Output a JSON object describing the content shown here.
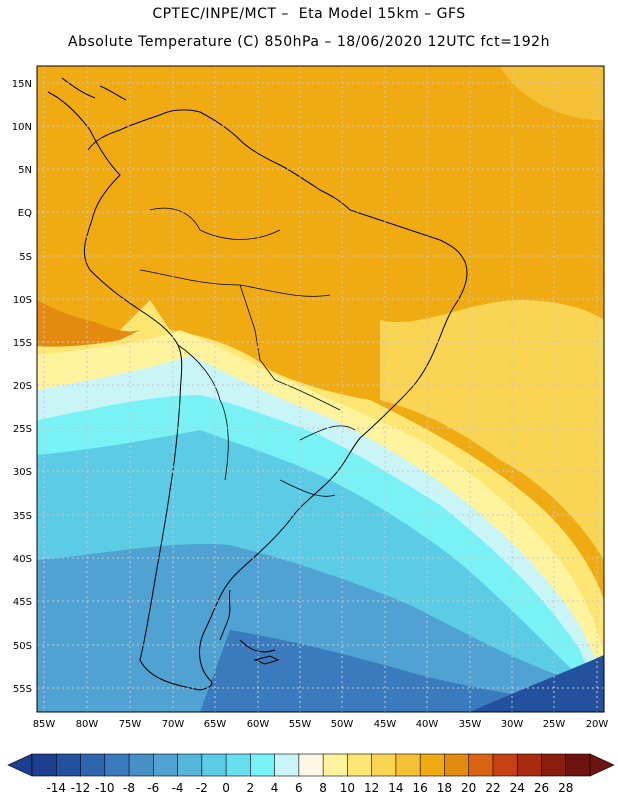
{
  "header": {
    "line1": "CPTEC/INPE/MCT –  Eta Model 15km – GFS",
    "line2": "Absolute Temperature (C) 850hPa – 18/06/2020 12UTC fct=192h"
  },
  "map": {
    "region": "South America",
    "lat_labels": [
      "15N",
      "10N",
      "5N",
      "EQ",
      "5S",
      "10S",
      "15S",
      "20S",
      "25S",
      "30S",
      "35S",
      "40S",
      "45S",
      "50S",
      "55S"
    ],
    "lon_labels": [
      "85W",
      "80W",
      "75W",
      "70W",
      "65W",
      "60W",
      "55W",
      "50W",
      "45W",
      "40W",
      "35W",
      "30W",
      "25W",
      "20W"
    ]
  },
  "colorbar": {
    "ticks": [
      "-14",
      "-12",
      "-10",
      "-8",
      "-6",
      "-4",
      "-2",
      "0",
      "2",
      "4",
      "6",
      "8",
      "10",
      "12",
      "14",
      "16",
      "18",
      "20",
      "22",
      "24",
      "26",
      "28"
    ],
    "colors": [
      "#1c3f8f",
      "#24519e",
      "#2e66ae",
      "#3a7bbd",
      "#4690c8",
      "#4fa2d2",
      "#55b6dc",
      "#5bcbe6",
      "#66e0ef",
      "#78f2f5",
      "#c9f5f7",
      "#fff7e3",
      "#fff39d",
      "#fde772",
      "#fad553",
      "#f4c034",
      "#f0ab12",
      "#e48a0f",
      "#db6412",
      "#c84211",
      "#a82c0f",
      "#8a1d0c",
      "#6e1410"
    ]
  }
}
